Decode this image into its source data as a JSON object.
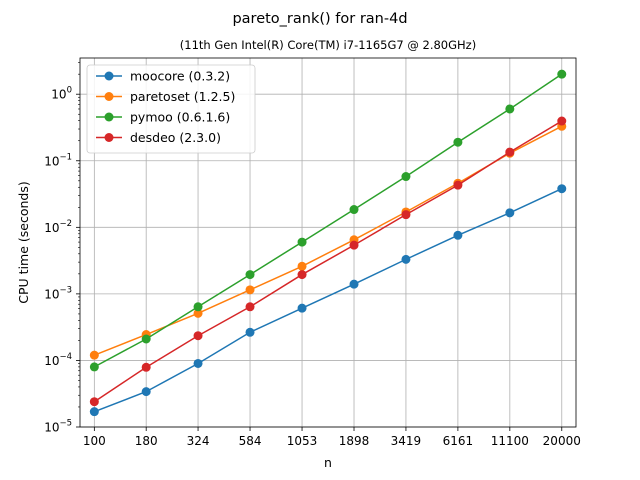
{
  "chart_data": {
    "type": "line",
    "title": "pareto_rank() for ran-4d",
    "subtitle": "(11th Gen Intel(R) Core(TM) i7-1165G7 @ 2.80GHz)",
    "xlabel": "n",
    "ylabel": "CPU time (seconds)",
    "x_scale": "log",
    "y_scale": "log",
    "x": [
      100,
      180,
      324,
      584,
      1053,
      1898,
      3419,
      6161,
      11100,
      20000
    ],
    "x_tick_labels": [
      "100",
      "180",
      "324",
      "584",
      "1053",
      "1898",
      "3419",
      "6161",
      "11100",
      "20000"
    ],
    "xlim": [
      85,
      23500
    ],
    "ylim": [
      1e-05,
      3.5
    ],
    "y_tick_values": [
      1e-05,
      0.0001,
      0.001,
      0.01,
      0.1,
      1
    ],
    "y_tick_labels": [
      {
        "base": "10",
        "exp": "−5"
      },
      {
        "base": "10",
        "exp": "−4"
      },
      {
        "base": "10",
        "exp": "−3"
      },
      {
        "base": "10",
        "exp": "−2"
      },
      {
        "base": "10",
        "exp": "−1"
      },
      {
        "base": "10",
        "exp": "0"
      }
    ],
    "grid": true,
    "legend_position": "top-left",
    "series": [
      {
        "name": "moocore (0.3.2)",
        "color": "#1f77b4",
        "values": [
          1.7e-05,
          3.4e-05,
          9e-05,
          0.000265,
          0.00061,
          0.0014,
          0.0033,
          0.0076,
          0.0165,
          0.038
        ]
      },
      {
        "name": "paretoset (1.2.5)",
        "color": "#ff7f0e",
        "values": [
          0.00012,
          0.000245,
          0.00051,
          0.00115,
          0.0026,
          0.0065,
          0.017,
          0.046,
          0.13,
          0.33
        ]
      },
      {
        "name": "pymoo (0.6.1.6)",
        "color": "#2ca02c",
        "values": [
          8e-05,
          0.00021,
          0.00064,
          0.00195,
          0.006,
          0.0185,
          0.058,
          0.19,
          0.6,
          2.0
        ]
      },
      {
        "name": "desdeo (2.3.0)",
        "color": "#d62728",
        "values": [
          2.4e-05,
          7.9e-05,
          0.000235,
          0.00064,
          0.00195,
          0.0054,
          0.0155,
          0.043,
          0.135,
          0.395
        ]
      }
    ]
  }
}
